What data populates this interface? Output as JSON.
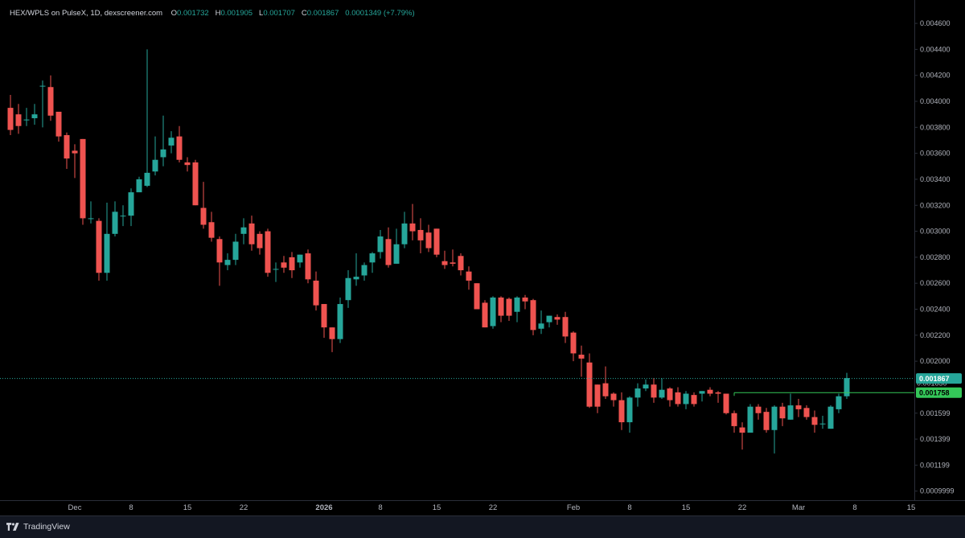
{
  "legend": {
    "title": "HEX/WPLS on PulseX, 1D, dexscreener.com",
    "o_label": "O",
    "o_value": "0.001732",
    "h_label": "H",
    "h_value": "0.001905",
    "l_label": "L",
    "l_value": "0.001707",
    "c_label": "C",
    "c_value": "0.001867",
    "change": "0.0001349 (+7.79%)"
  },
  "footer": {
    "brand": "TradingView"
  },
  "colors": {
    "up": "#26a69a",
    "down": "#ef5350",
    "line": "#34c759",
    "grid": "#1b1e27",
    "bg": "#000000"
  },
  "chart_data": {
    "type": "candlestick",
    "y_ticks": [
      "0.004600",
      "0.004400",
      "0.004200",
      "0.004000",
      "0.003800",
      "0.003600",
      "0.003400",
      "0.003200",
      "0.003000",
      "0.002800",
      "0.002600",
      "0.002400",
      "0.002200",
      "0.002000",
      "0.001599",
      "0.001399",
      "0.001199",
      "0.0009999"
    ],
    "y_tick_values": [
      0.0046,
      0.0044,
      0.0042,
      0.004,
      0.0038,
      0.0036,
      0.0034,
      0.0032,
      0.003,
      0.0028,
      0.0026,
      0.0024,
      0.0022,
      0.002,
      0.0016,
      0.0014,
      0.0012,
      0.001
    ],
    "ylim": [
      0.00093,
      0.00478
    ],
    "x_ticks": [
      {
        "label": "Dec",
        "day": 1
      },
      {
        "label": "8",
        "day": 8
      },
      {
        "label": "15",
        "day": 15
      },
      {
        "label": "22",
        "day": 22
      },
      {
        "label": "2026",
        "day": 32
      },
      {
        "label": "8",
        "day": 39
      },
      {
        "label": "15",
        "day": 46
      },
      {
        "label": "22",
        "day": 53
      },
      {
        "label": "Feb",
        "day": 63
      },
      {
        "label": "8",
        "day": 70
      },
      {
        "label": "15",
        "day": 77
      },
      {
        "label": "22",
        "day": 84
      },
      {
        "label": "Mar",
        "day": 91
      },
      {
        "label": "8",
        "day": 98
      },
      {
        "label": "15",
        "day": 105
      }
    ],
    "candles_start_day": -7,
    "candles": [
      [
        0.00385,
        0.00395,
        0.00378,
        0.00374,
        0.00405
      ],
      [
        0.00385,
        0.0039,
        0.00381,
        0.00375,
        0.00398
      ],
      [
        0.00391,
        0.00386,
        0.00386,
        0.00381,
        0.00395
      ],
      [
        0.00388,
        0.00387,
        0.0039,
        0.00382,
        0.00398
      ],
      [
        0.0039,
        0.00412,
        0.00412,
        0.0038,
        0.00416
      ],
      [
        0.004,
        0.00411,
        0.00389,
        0.00385,
        0.0042
      ],
      [
        0.00394,
        0.00392,
        0.00373,
        0.00369,
        0.00392
      ],
      [
        0.00374,
        0.00374,
        0.00356,
        0.00348,
        0.00376
      ],
      [
        0.00355,
        0.00362,
        0.0036,
        0.00341,
        0.00367
      ],
      [
        0.00371,
        0.00371,
        0.0031,
        0.00305,
        0.00371
      ],
      [
        0.0031,
        0.0031,
        0.0031,
        0.00306,
        0.00323
      ],
      [
        0.00308,
        0.00308,
        0.00268,
        0.00262,
        0.0031
      ],
      [
        0.00268,
        0.00268,
        0.00298,
        0.00262,
        0.00322
      ],
      [
        0.00298,
        0.00298,
        0.00315,
        0.00296,
        0.00323
      ],
      [
        0.00315,
        0.00312,
        0.00312,
        0.00304,
        0.0032
      ],
      [
        0.00312,
        0.00312,
        0.0033,
        0.00304,
        0.00333
      ],
      [
        0.0033,
        0.0033,
        0.0034,
        0.00332,
        0.00342
      ],
      [
        0.00335,
        0.00335,
        0.00345,
        0.00334,
        0.0044
      ],
      [
        0.00346,
        0.00346,
        0.00355,
        0.00343,
        0.00373
      ],
      [
        0.00357,
        0.00357,
        0.00363,
        0.0035,
        0.00389
      ],
      [
        0.00366,
        0.00366,
        0.00372,
        0.0036,
        0.00377
      ],
      [
        0.00373,
        0.00373,
        0.00355,
        0.00353,
        0.00381
      ],
      [
        0.00353,
        0.00353,
        0.00351,
        0.00346,
        0.00357
      ],
      [
        0.00353,
        0.00353,
        0.0032,
        0.0032,
        0.00355
      ],
      [
        0.0032,
        0.00318,
        0.00305,
        0.00302,
        0.00338
      ],
      [
        0.00307,
        0.00307,
        0.00295,
        0.00292,
        0.00315
      ],
      [
        0.00294,
        0.00294,
        0.00276,
        0.00258,
        0.00296
      ],
      [
        0.00274,
        0.00274,
        0.00278,
        0.0027,
        0.00283
      ],
      [
        0.00278,
        0.00278,
        0.00292,
        0.00274,
        0.00298
      ],
      [
        0.00298,
        0.00298,
        0.00303,
        0.0029,
        0.0031
      ],
      [
        0.00306,
        0.00306,
        0.0029,
        0.00285,
        0.00312
      ],
      [
        0.00296,
        0.00298,
        0.00287,
        0.00282,
        0.003
      ],
      [
        0.003,
        0.003,
        0.00268,
        0.00265,
        0.00302
      ],
      [
        0.00271,
        0.00271,
        0.00271,
        0.00261,
        0.00276
      ],
      [
        0.00276,
        0.00276,
        0.00272,
        0.00268,
        0.00281
      ],
      [
        0.0028,
        0.0028,
        0.0027,
        0.00264,
        0.00284
      ],
      [
        0.00276,
        0.00276,
        0.00282,
        0.00272,
        0.00282
      ],
      [
        0.00283,
        0.00283,
        0.00263,
        0.0026,
        0.00286
      ],
      [
        0.00262,
        0.00262,
        0.00243,
        0.00239,
        0.00269
      ],
      [
        0.00244,
        0.00244,
        0.00226,
        0.00218,
        0.00244
      ],
      [
        0.00226,
        0.00226,
        0.00217,
        0.00207,
        0.00226
      ],
      [
        0.00217,
        0.00217,
        0.00244,
        0.00214,
        0.00249
      ],
      [
        0.00247,
        0.00247,
        0.00264,
        0.00241,
        0.0027
      ],
      [
        0.00263,
        0.00263,
        0.00265,
        0.00258,
        0.00283
      ],
      [
        0.00266,
        0.00266,
        0.00274,
        0.00262,
        0.00276
      ],
      [
        0.00276,
        0.00276,
        0.00283,
        0.00268,
        0.00284
      ],
      [
        0.00284,
        0.00284,
        0.00296,
        0.00279,
        0.00301
      ],
      [
        0.00294,
        0.00294,
        0.00274,
        0.00272,
        0.00303
      ],
      [
        0.00275,
        0.00275,
        0.0029,
        0.00275,
        0.00302
      ],
      [
        0.0029,
        0.0029,
        0.00306,
        0.00287,
        0.00315
      ],
      [
        0.00306,
        0.00306,
        0.003,
        0.00293,
        0.00321
      ],
      [
        0.00301,
        0.00301,
        0.00293,
        0.00283,
        0.0031
      ],
      [
        0.00299,
        0.00299,
        0.00287,
        0.00284,
        0.00305
      ],
      [
        0.00302,
        0.00302,
        0.00282,
        0.0028,
        0.00302
      ],
      [
        0.00277,
        0.00277,
        0.00274,
        0.00271,
        0.00285
      ],
      [
        0.00276,
        0.00276,
        0.00275,
        0.00273,
        0.00286
      ],
      [
        0.00281,
        0.00281,
        0.0027,
        0.00266,
        0.00283
      ],
      [
        0.00269,
        0.00269,
        0.00262,
        0.00255,
        0.00273
      ],
      [
        0.0026,
        0.0026,
        0.0024,
        0.0024,
        0.0026
      ],
      [
        0.00245,
        0.00245,
        0.00226,
        0.00226,
        0.00247
      ],
      [
        0.00227,
        0.00227,
        0.00249,
        0.00225,
        0.0025
      ],
      [
        0.00249,
        0.00249,
        0.00235,
        0.0023,
        0.0025
      ],
      [
        0.00248,
        0.00248,
        0.00235,
        0.00231,
        0.00249
      ],
      [
        0.00238,
        0.00238,
        0.00249,
        0.0023,
        0.0025
      ],
      [
        0.00249,
        0.00249,
        0.00246,
        0.0024,
        0.00251
      ],
      [
        0.00247,
        0.00247,
        0.00224,
        0.0022,
        0.00248
      ],
      [
        0.00225,
        0.00225,
        0.00229,
        0.00221,
        0.00239
      ],
      [
        0.0023,
        0.0023,
        0.00235,
        0.00226,
        0.00235
      ],
      [
        0.00234,
        0.00234,
        0.00232,
        0.00228,
        0.00236
      ],
      [
        0.00234,
        0.00234,
        0.00219,
        0.00214,
        0.00238
      ],
      [
        0.00222,
        0.00222,
        0.00206,
        0.002,
        0.00223
      ],
      [
        0.00205,
        0.00205,
        0.00202,
        0.00188,
        0.00212
      ],
      [
        0.00199,
        0.00199,
        0.00165,
        0.00164,
        0.00206
      ],
      [
        0.00182,
        0.00182,
        0.00165,
        0.0016,
        0.00182
      ],
      [
        0.00183,
        0.00183,
        0.00173,
        0.00171,
        0.00196
      ],
      [
        0.00175,
        0.00175,
        0.0017,
        0.00165,
        0.00176
      ],
      [
        0.0017,
        0.0017,
        0.00153,
        0.00147,
        0.00176
      ],
      [
        0.00153,
        0.00153,
        0.00172,
        0.00145,
        0.00173
      ],
      [
        0.00172,
        0.00172,
        0.00179,
        0.00165,
        0.00183
      ],
      [
        0.00179,
        0.00179,
        0.00182,
        0.00177,
        0.00186
      ],
      [
        0.00182,
        0.00182,
        0.00172,
        0.00168,
        0.00187
      ],
      [
        0.00172,
        0.00172,
        0.00178,
        0.00171,
        0.00187
      ],
      [
        0.00179,
        0.00179,
        0.0017,
        0.00165,
        0.0018
      ],
      [
        0.00176,
        0.00176,
        0.00167,
        0.00165,
        0.0018
      ],
      [
        0.00167,
        0.00167,
        0.00175,
        0.00163,
        0.00177
      ],
      [
        0.00174,
        0.00174,
        0.00167,
        0.00165,
        0.00176
      ],
      [
        0.00175,
        0.00175,
        0.00177,
        0.00169,
        0.00177
      ],
      [
        0.00178,
        0.00178,
        0.00175,
        0.00173,
        0.0018
      ],
      [
        0.00176,
        0.00176,
        0.00175,
        0.00168,
        0.00177
      ],
      [
        0.00175,
        0.00175,
        0.0016,
        0.00159,
        0.00175
      ],
      [
        0.0016,
        0.0016,
        0.0015,
        0.00145,
        0.00162
      ],
      [
        0.00149,
        0.00149,
        0.00145,
        0.00132,
        0.00153
      ],
      [
        0.00145,
        0.00145,
        0.00165,
        0.00145,
        0.00167
      ],
      [
        0.00165,
        0.00165,
        0.0016,
        0.00155,
        0.00167
      ],
      [
        0.00161,
        0.00161,
        0.00147,
        0.00145,
        0.00164
      ],
      [
        0.00147,
        0.00147,
        0.00165,
        0.00129,
        0.00166
      ],
      [
        0.00165,
        0.00165,
        0.00156,
        0.0015,
        0.00168
      ],
      [
        0.00155,
        0.00155,
        0.00166,
        0.00155,
        0.00175
      ],
      [
        0.00166,
        0.00166,
        0.00163,
        0.00157,
        0.00171
      ],
      [
        0.00164,
        0.00164,
        0.00157,
        0.00155,
        0.00166
      ],
      [
        0.00157,
        0.00157,
        0.00151,
        0.00145,
        0.00162
      ],
      [
        0.00152,
        0.00152,
        0.00152,
        0.00148,
        0.00158
      ],
      [
        0.00148,
        0.00148,
        0.00165,
        0.00148,
        0.00166
      ],
      [
        0.00163,
        0.00163,
        0.00173,
        0.0016,
        0.00175
      ],
      [
        0.00173,
        0.00173,
        0.00187,
        0.00171,
        0.00191
      ]
    ],
    "candle_format": [
      "open",
      "display_open",
      "close",
      "low",
      "high"
    ],
    "last_price": {
      "label": "0.001867",
      "value": 0.001867
    },
    "ref_line": {
      "label": "0.001758",
      "value": 0.001758,
      "start_day": 84
    },
    "hidden_label": "0.001830"
  }
}
